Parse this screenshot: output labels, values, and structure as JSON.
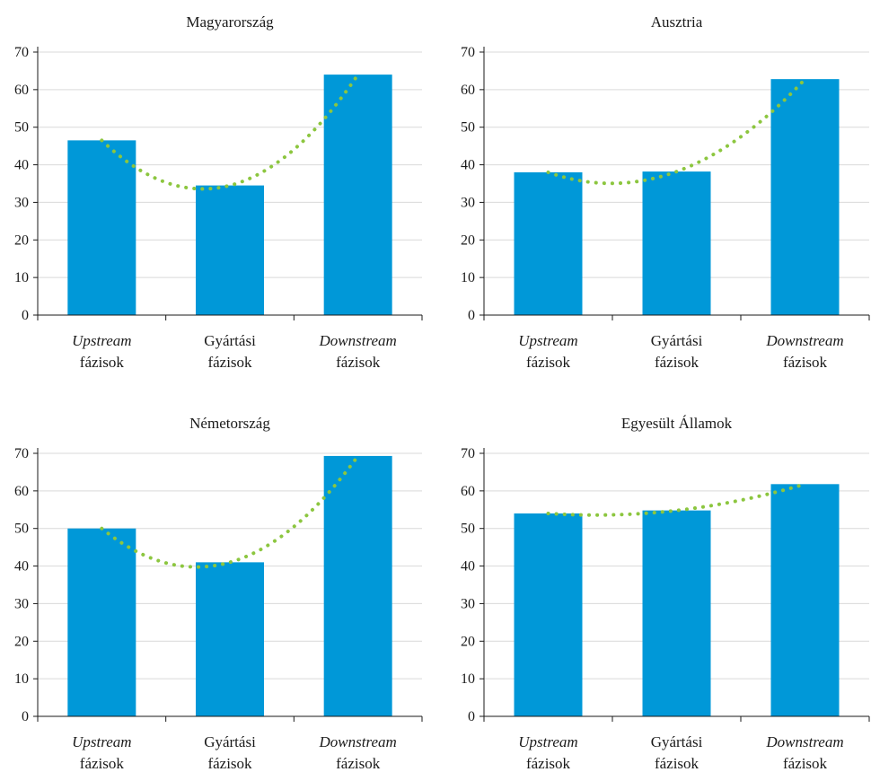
{
  "colors": {
    "bar": "#0098d8",
    "trend": "#8cc63f",
    "grid": "#d9d9d9"
  },
  "chart_data": [
    {
      "type": "bar",
      "title": "Magyarország",
      "categories": [
        {
          "line1": "Upstream",
          "line1_italic": true,
          "line2": "fázisok"
        },
        {
          "line1": "Gyártási",
          "line1_italic": false,
          "line2": "fázisok"
        },
        {
          "line1": "Downstream",
          "line1_italic": true,
          "line2": "fázisok"
        }
      ],
      "values": [
        46.5,
        34.5,
        64
      ],
      "trendline": "dotted polynomial",
      "ylim": [
        0,
        70
      ],
      "yticks": [
        0,
        10,
        20,
        30,
        40,
        50,
        60,
        70
      ],
      "grid": true
    },
    {
      "type": "bar",
      "title": "Ausztria",
      "categories": [
        {
          "line1": "Upstream",
          "line1_italic": true,
          "line2": "fázisok"
        },
        {
          "line1": "Gyártási",
          "line1_italic": false,
          "line2": "fázisok"
        },
        {
          "line1": "Downstream",
          "line1_italic": true,
          "line2": "fázisok"
        }
      ],
      "values": [
        38,
        38.2,
        62.8
      ],
      "trendline": "dotted polynomial",
      "ylim": [
        0,
        70
      ],
      "yticks": [
        0,
        10,
        20,
        30,
        40,
        50,
        60,
        70
      ],
      "grid": true
    },
    {
      "type": "bar",
      "title": "Németország",
      "categories": [
        {
          "line1": "Upstream",
          "line1_italic": true,
          "line2": "fázisok"
        },
        {
          "line1": "Gyártási",
          "line1_italic": false,
          "line2": "fázisok"
        },
        {
          "line1": "Downstream",
          "line1_italic": true,
          "line2": "fázisok"
        }
      ],
      "values": [
        50,
        41,
        69.3
      ],
      "trendline": "dotted polynomial",
      "ylim": [
        0,
        70
      ],
      "yticks": [
        0,
        10,
        20,
        30,
        40,
        50,
        60,
        70
      ],
      "grid": true
    },
    {
      "type": "bar",
      "title": "Egyesült Államok",
      "categories": [
        {
          "line1": "Upstream",
          "line1_italic": true,
          "line2": "fázisok"
        },
        {
          "line1": "Gyártási",
          "line1_italic": false,
          "line2": "fázisok"
        },
        {
          "line1": "Downstream",
          "line1_italic": true,
          "line2": "fázisok"
        }
      ],
      "values": [
        54,
        54.8,
        61.8
      ],
      "trendline": "dotted polynomial",
      "ylim": [
        0,
        70
      ],
      "yticks": [
        0,
        10,
        20,
        30,
        40,
        50,
        60,
        70
      ],
      "grid": true
    }
  ]
}
